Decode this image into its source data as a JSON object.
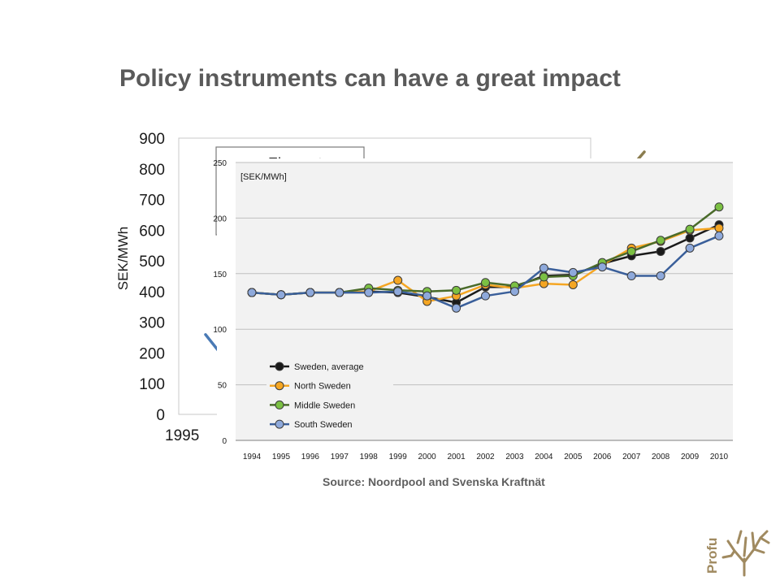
{
  "slide": {
    "title": "Policy instruments can have a great impact",
    "source": "Source: Noordpool and Svenska Kraftnät",
    "logo_text": "Profu"
  },
  "colors": {
    "title": "#5a5a5a",
    "el_cert": "#8b7d4f",
    "el_blue": "#4a7ab5",
    "el_green": "#6a9a3a",
    "sweden_avg": "#1a1a1a",
    "north": "#f5a623",
    "middle": "#7bc043",
    "middle_line": "#4a6b2a",
    "south": "#8ea9db",
    "south_line": "#3a5f9a",
    "logo": "#a08a60"
  },
  "chart_data": [
    {
      "type": "line",
      "ylabel": "SEK/MWh",
      "ylim": [
        0,
        900
      ],
      "yticks": [
        "0",
        "100",
        "200",
        "300",
        "400",
        "500",
        "600",
        "700",
        "800",
        "900"
      ],
      "xticks_visible": [
        "1995"
      ],
      "legend": {
        "placement": "top-left",
        "entries": [
          "El + cert"
        ]
      },
      "series": [
        {
          "name": "El + cert",
          "color": "#8b7d4f",
          "points_visible": [
            [
              2009.5,
              800
            ],
            [
              2010,
              855
            ]
          ]
        },
        {
          "name": "",
          "color": "#4a7ab5",
          "points_visible": [
            [
              1995,
              260
            ],
            [
              1996,
              140
            ],
            [
              1996.3,
              135
            ]
          ]
        }
      ]
    },
    {
      "type": "line",
      "ylabel": "[SEK/MWh]",
      "ylim": [
        0,
        250
      ],
      "yticks": [
        "0",
        "50",
        "100",
        "150",
        "200",
        "250"
      ],
      "categories": [
        "1994",
        "1995",
        "1996",
        "1997",
        "1998",
        "1999",
        "2000",
        "2001",
        "2002",
        "2003",
        "2004",
        "2005",
        "2006",
        "2007",
        "2008",
        "2009",
        "2010"
      ],
      "grid": true,
      "legend": {
        "placement": "bottom-left"
      },
      "series": [
        {
          "name": "Sweden, average",
          "color": "#1a1a1a",
          "marker": "#1a1a1a",
          "values": [
            133,
            131,
            133,
            133,
            134,
            133,
            129,
            124,
            138,
            138,
            148,
            149,
            159,
            166,
            170,
            182,
            194
          ]
        },
        {
          "name": "North Sweden",
          "color": "#f5a623",
          "marker": "#f5a623",
          "values": [
            133,
            131,
            133,
            133,
            134,
            144,
            125,
            130,
            140,
            137,
            141,
            140,
            158,
            173,
            179,
            189,
            191
          ]
        },
        {
          "name": "Middle Sweden",
          "color": "#4a6b2a",
          "marker": "#7bc043",
          "values": [
            133,
            131,
            133,
            133,
            137,
            135,
            134,
            135,
            142,
            139,
            147,
            148,
            160,
            170,
            180,
            190,
            210
          ]
        },
        {
          "name": "South Sweden",
          "color": "#3a5f9a",
          "marker": "#8ea9db",
          "values": [
            133,
            131,
            133,
            133,
            133,
            134,
            130,
            119,
            130,
            134,
            155,
            151,
            156,
            148,
            148,
            173,
            184
          ]
        }
      ]
    }
  ]
}
